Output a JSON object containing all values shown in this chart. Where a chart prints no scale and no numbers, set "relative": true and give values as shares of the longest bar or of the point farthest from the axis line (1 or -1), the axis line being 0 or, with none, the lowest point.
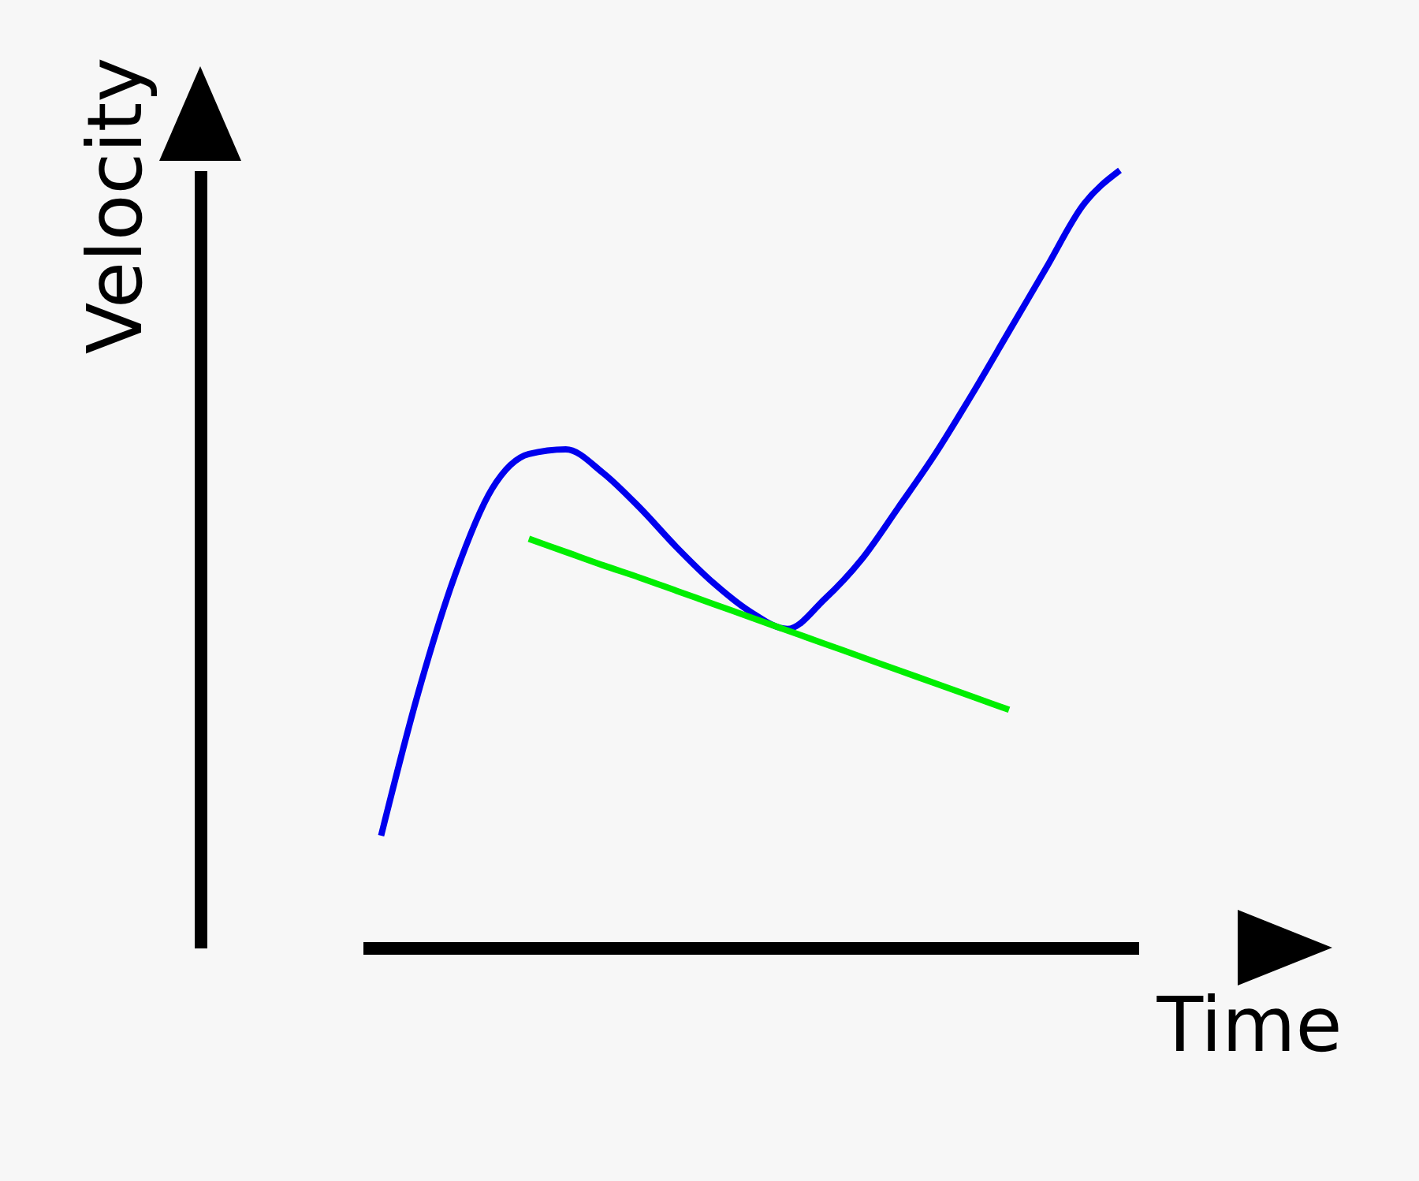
{
  "chart_data": {
    "type": "line",
    "relative": true,
    "xlabel": "Time",
    "ylabel": "Velocity",
    "categories": [
      null,
      null,
      null,
      null,
      null,
      null,
      null,
      null,
      null,
      null,
      null,
      null,
      null,
      null,
      null,
      null,
      null,
      null,
      null,
      null,
      null
    ],
    "series": [
      {
        "color": "#0000ee",
        "values": [
          0.144,
          0.327,
          0.479,
          0.59,
          0.635,
          0.641,
          0.611,
          0.566,
          0.515,
          0.469,
          0.432,
          0.41,
          0.448,
          0.499,
          0.566,
          0.635,
          0.712,
          0.793,
          0.874,
          0.955,
          1.0
        ]
      },
      {
        "color": "#00ee00",
        "values": [
          null,
          null,
          null,
          null,
          0.526,
          0.509,
          0.492,
          0.476,
          0.459,
          0.442,
          0.425,
          0.408,
          0.391,
          0.374,
          0.357,
          0.34,
          0.323,
          0.306,
          null,
          null,
          null
        ]
      }
    ]
  }
}
